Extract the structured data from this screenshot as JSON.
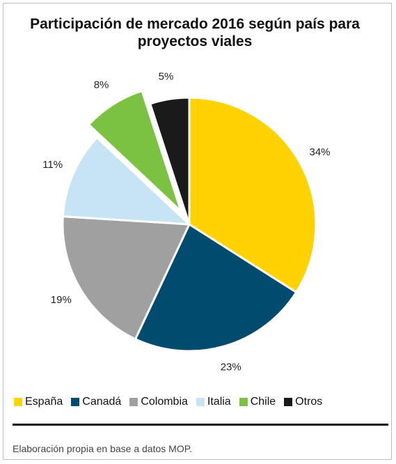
{
  "chart_data": {
    "type": "pie",
    "title": "Participación de mercado 2016 según país para proyectos viales",
    "categories": [
      "España",
      "Canadá",
      "Colombia",
      "Italia",
      "Chile",
      "Otros"
    ],
    "values": [
      34,
      23,
      19,
      11,
      8,
      5
    ],
    "value_labels": [
      "34%",
      "23%",
      "19%",
      "11%",
      "8%",
      "5%"
    ],
    "colors": [
      "#ffd200",
      "#004b6e",
      "#a0a0a0",
      "#c6e4f4",
      "#7cc242",
      "#1a1a1a"
    ],
    "exploded": "Chile",
    "source": "Elaboración propia en base a datos MOP."
  }
}
